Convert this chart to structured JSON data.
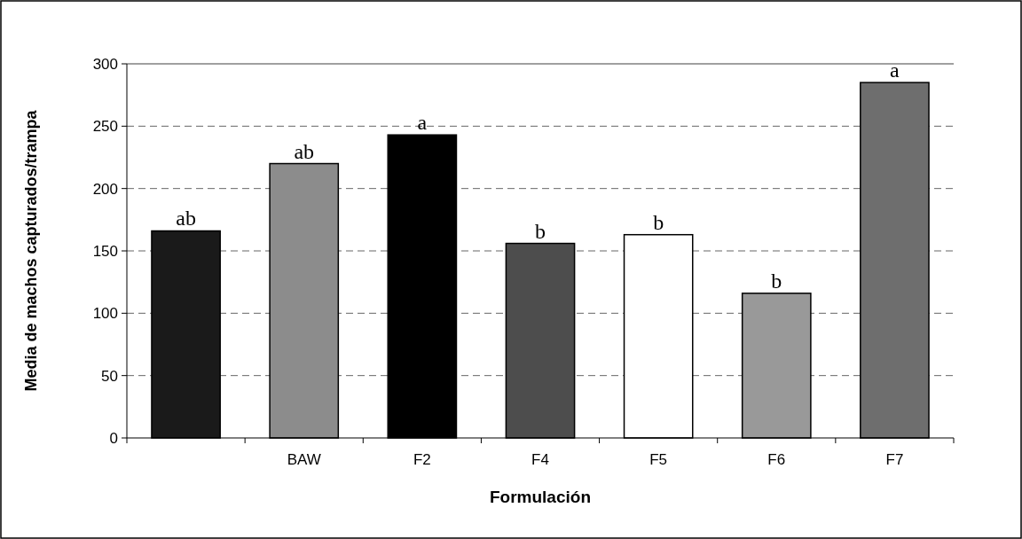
{
  "chart_data": {
    "type": "bar",
    "xlabel": "Formulación",
    "ylabel": "Media de machos capturados/trampa",
    "categories": [
      null,
      "BAW",
      "F2",
      "F4",
      "F5",
      "F6",
      "F7"
    ],
    "values": [
      166,
      220,
      243,
      156,
      163,
      116,
      285
    ],
    "value_labels": [
      "ab",
      "ab",
      "a",
      "b",
      "b",
      "b",
      "a"
    ],
    "colors": [
      "#1a1a1a",
      "#8c8c8c",
      "#000000",
      "#4d4d4d",
      "#ffffff",
      "#999999",
      "#6e6e6e"
    ],
    "ylim": [
      0,
      300
    ],
    "yticks": [
      0,
      50,
      100,
      150,
      200,
      250,
      300
    ],
    "grid": "y"
  }
}
